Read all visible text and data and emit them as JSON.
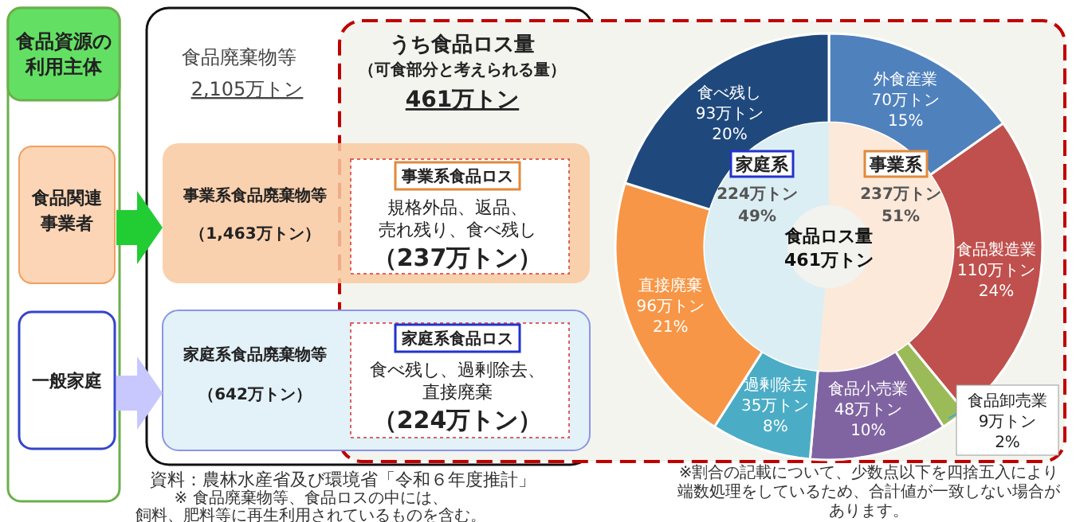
{
  "chart_data": [
    {
      "type": "other",
      "annotations": [
        "食品資源の利用主体",
        "食品関連事業者",
        "一般家庭",
        "食品廃棄物等",
        "2,105万トン",
        "うち食品ロス量",
        "（可食部分と考えられる量）",
        "461万トン",
        "事業系食品廃棄物等",
        "（1,463万トン）",
        "事業系食品ロス",
        "規格外品、返品、売れ残り、食べ残し",
        "（237万トン）",
        "家庭系食品廃棄物等",
        "（642万トン）",
        "家庭系食品ロス",
        "食べ残し、過剰除去、直接廃棄",
        "（224万トン）",
        "資料：農林水産省及び環境省「令和６年度推計」",
        "※ 食品廃棄物等、食品ロスの中には、飼料、肥料等に再生利用されているものを含む。"
      ]
    },
    {
      "type": "donut",
      "categories": [
        "外食産業",
        "食品製造業",
        "食品卸売業",
        "食品小売業",
        "過剰除去",
        "直接廃棄",
        "食べ残し"
      ],
      "values": [
        70,
        110,
        9,
        48,
        35,
        96,
        93
      ],
      "colors": [
        "#4f81bd",
        "#c0504d",
        "#9bbb59",
        "#8064a2",
        "#4bacc6",
        "#f79646",
        "#1f497d"
      ],
      "value_labels": [
        "70万トン 15%",
        "110万トン 24%",
        "9万トン 2%",
        "48万トン 10%",
        "35万トン 8%",
        "96万トン 21%",
        "93万トン 20%"
      ],
      "annotations": [
        "※割合の記載について、少数点以下を四捨五入により端数処理をしているため、合計値が一致しない場合があります。"
      ]
    },
    {
      "type": "donut",
      "title": "食品ロス量",
      "subtitle": "461万トン",
      "categories": [
        "事業系",
        "家庭系"
      ],
      "values": [
        237,
        224
      ],
      "colors": [
        "#fde9d9",
        "#dbeef4"
      ],
      "value_labels": [
        "237万トン 51%",
        "224万トン 49%"
      ]
    }
  ]
}
